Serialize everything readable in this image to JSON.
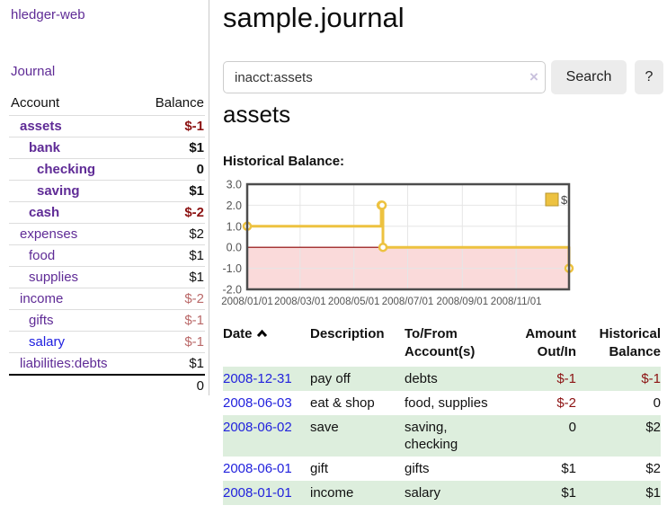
{
  "app": {
    "title": "hledger-web"
  },
  "sidebar": {
    "journal_label": "Journal",
    "accounts": {
      "col_account": "Account",
      "col_balance": "Balance",
      "rows": [
        {
          "name": "assets",
          "balance": "$-1",
          "level": 1,
          "bold": true,
          "balance_tone": "neg-dark",
          "name_tone": "purple"
        },
        {
          "name": "bank",
          "balance": "$1",
          "level": 2,
          "bold": true,
          "balance_tone": "",
          "name_tone": "purple"
        },
        {
          "name": "checking",
          "balance": "0",
          "level": 3,
          "bold": true,
          "balance_tone": "",
          "name_tone": "purple"
        },
        {
          "name": "saving",
          "balance": "$1",
          "level": 3,
          "bold": true,
          "balance_tone": "",
          "name_tone": "purple"
        },
        {
          "name": "cash",
          "balance": "$-2",
          "level": 2,
          "bold": true,
          "balance_tone": "neg-dark",
          "name_tone": "purple"
        },
        {
          "name": "expenses",
          "balance": "$2",
          "level": 1,
          "bold": false,
          "balance_tone": "",
          "name_tone": "purple"
        },
        {
          "name": "food",
          "balance": "$1",
          "level": 2,
          "bold": false,
          "balance_tone": "",
          "name_tone": "purple"
        },
        {
          "name": "supplies",
          "balance": "$1",
          "level": 2,
          "bold": false,
          "balance_tone": "",
          "name_tone": "purple"
        },
        {
          "name": "income",
          "balance": "$-2",
          "level": 1,
          "bold": false,
          "balance_tone": "neg-soft",
          "name_tone": "purple"
        },
        {
          "name": "gifts",
          "balance": "$-1",
          "level": 2,
          "bold": false,
          "balance_tone": "neg-soft",
          "name_tone": "purple"
        },
        {
          "name": "salary",
          "balance": "$-1",
          "level": 2,
          "bold": false,
          "balance_tone": "neg-soft",
          "name_tone": "blue"
        },
        {
          "name": "liabilities:debts",
          "balance": "$1",
          "level": 1,
          "bold": false,
          "balance_tone": "",
          "name_tone": "purple"
        }
      ],
      "total": "0"
    }
  },
  "header": {
    "title": "sample.journal"
  },
  "search": {
    "query": "inacct:assets",
    "clear_icon": "×",
    "button_label": "Search",
    "help_label": "?"
  },
  "account_page": {
    "title": "assets",
    "chart_label": "Historical Balance:"
  },
  "chart_data": {
    "type": "line",
    "title": "Historical Balance",
    "ylim": [
      -2.0,
      3.0
    ],
    "y_ticks": [
      3.0,
      2.0,
      1.0,
      0.0,
      -1.0,
      -2.0
    ],
    "x_range_days": [
      0,
      365
    ],
    "x_ticks": [
      {
        "label": "2008/01/01",
        "day": 0
      },
      {
        "label": "2008/03/01",
        "day": 60
      },
      {
        "label": "2008/05/01",
        "day": 121
      },
      {
        "label": "2008/07/01",
        "day": 182
      },
      {
        "label": "2008/09/01",
        "day": 244
      },
      {
        "label": "2008/11/01",
        "day": 305
      }
    ],
    "series": [
      {
        "name": "$",
        "color": "#edc240",
        "steps": true,
        "points": [
          {
            "date": "2008-01-01",
            "day": 0,
            "value": 1
          },
          {
            "date": "2008-06-01",
            "day": 152,
            "value": 2
          },
          {
            "date": "2008-06-02",
            "day": 153,
            "value": 2
          },
          {
            "date": "2008-06-03",
            "day": 154,
            "value": 0
          },
          {
            "date": "2008-12-31",
            "day": 365,
            "value": -1
          }
        ]
      }
    ],
    "legend": {
      "label": "$",
      "position": "top-right"
    },
    "grid": true,
    "grid_color": "#e6e6e6",
    "border_color": "#4d4d4d",
    "zero_line_color": "#8b0000",
    "negative_region_color": "#fadada"
  },
  "transactions": {
    "col_date": "Date",
    "col_description": "Description",
    "col_accounts": "To/From Account(s)",
    "col_amount": "Amount Out/In",
    "col_balance": "Historical Balance",
    "rows": [
      {
        "date": "2008-12-31",
        "description": "pay off",
        "accounts": "debts",
        "amount": "$-1",
        "amount_neg": true,
        "balance": "$-1",
        "balance_neg": true
      },
      {
        "date": "2008-06-03",
        "description": "eat & shop",
        "accounts": "food, supplies",
        "amount": "$-2",
        "amount_neg": true,
        "balance": "0",
        "balance_neg": false
      },
      {
        "date": "2008-06-02",
        "description": "save",
        "accounts": "saving,\nchecking",
        "amount": "0",
        "amount_neg": false,
        "balance": "$2",
        "balance_neg": false
      },
      {
        "date": "2008-06-01",
        "description": "gift",
        "accounts": "gifts",
        "amount": "$1",
        "amount_neg": false,
        "balance": "$2",
        "balance_neg": false
      },
      {
        "date": "2008-01-01",
        "description": "income",
        "accounts": "salary",
        "amount": "$1",
        "amount_neg": false,
        "balance": "$1",
        "balance_neg": false
      }
    ]
  }
}
